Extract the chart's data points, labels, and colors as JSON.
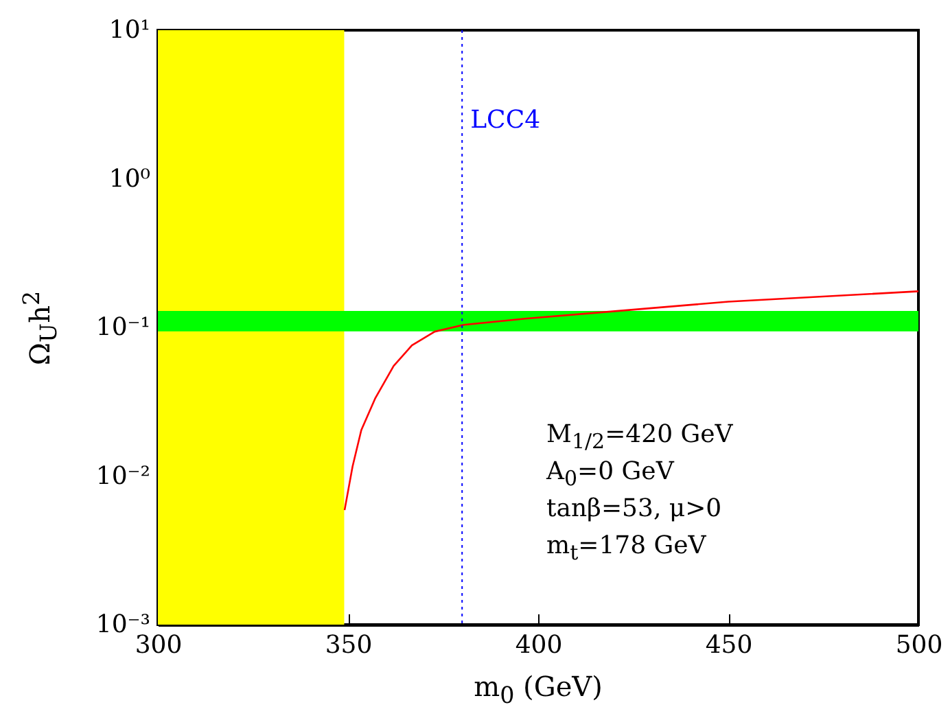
{
  "chart_data": {
    "type": "line",
    "xlabel": "m$_{0}$ (GeV)",
    "ylabel": "Ω$_{U}$h$^{2}$",
    "x": [
      349.1,
      351.2,
      353.5,
      357.2,
      362.0,
      366.8,
      372.8,
      380.4,
      395.7,
      413.7,
      450,
      500
    ],
    "series": [
      {
        "color": "#ff0000",
        "values": [
          0.0059,
          0.0116,
          0.0204,
          0.0335,
          0.055,
          0.0757,
          0.0937,
          0.104,
          0.114,
          0.1245,
          0.149,
          0.175
        ]
      }
    ],
    "log": true,
    "xlim": [
      300,
      500
    ],
    "xticks": [
      300,
      350,
      400,
      450,
      500
    ],
    "ylim": [
      0.001,
      10
    ],
    "yticks": [
      {
        "value": 0.001,
        "label": "10⁻³"
      },
      {
        "value": 0.01,
        "label": "10⁻²"
      },
      {
        "value": 0.1,
        "label": "10⁻¹"
      },
      {
        "value": 1,
        "label": "10⁰"
      },
      {
        "value": 10,
        "label": "10¹"
      }
    ],
    "bands": [
      {
        "axis": "x",
        "from": 300,
        "to": 349,
        "color": "#ffff00"
      },
      {
        "axis": "y",
        "from": 0.094,
        "to": 0.129,
        "color": "#00ff00"
      }
    ],
    "ref_lines": [
      {
        "axis": "x",
        "value": 380,
        "label": "LCC4",
        "color": "#0000ff",
        "line_style": "dotted"
      }
    ],
    "annotations": [
      "M$_{1/2}$=420 GeV",
      "A$_{0}$=0 GeV",
      "tanβ=53, μ>0",
      "m$_{t}$=178 GeV"
    ]
  }
}
